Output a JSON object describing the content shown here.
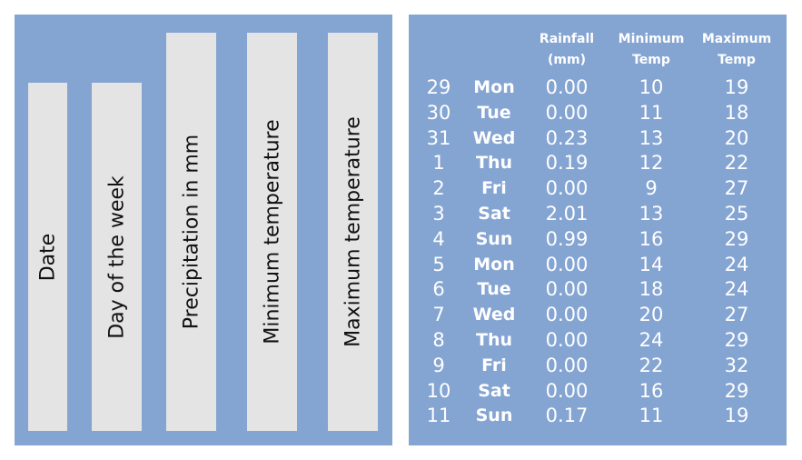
{
  "legend": {
    "bars": [
      {
        "label": "Date"
      },
      {
        "label": "Day of the week"
      },
      {
        "label": "Precipitation in mm"
      },
      {
        "label": "Minimum temperature"
      },
      {
        "label": "Maximum temperature"
      }
    ]
  },
  "table": {
    "headers": {
      "rainfall": "Rainfall\n(mm)",
      "min": "Minimum\nTemp",
      "max": "Maximum\nTemp"
    },
    "rows": [
      {
        "date": "29",
        "day": "Mon",
        "rain": "0.00",
        "min": "10",
        "max": "19"
      },
      {
        "date": "30",
        "day": "Tue",
        "rain": "0.00",
        "min": "11",
        "max": "18"
      },
      {
        "date": "31",
        "day": "Wed",
        "rain": "0.23",
        "min": "13",
        "max": "20"
      },
      {
        "date": "1",
        "day": "Thu",
        "rain": "0.19",
        "min": "12",
        "max": "22"
      },
      {
        "date": "2",
        "day": "Fri",
        "rain": "0.00",
        "min": "9",
        "max": "27"
      },
      {
        "date": "3",
        "day": "Sat",
        "rain": "2.01",
        "min": "13",
        "max": "25"
      },
      {
        "date": "4",
        "day": "Sun",
        "rain": "0.99",
        "min": "16",
        "max": "29"
      },
      {
        "date": "5",
        "day": "Mon",
        "rain": "0.00",
        "min": "14",
        "max": "24"
      },
      {
        "date": "6",
        "day": "Tue",
        "rain": "0.00",
        "min": "18",
        "max": "24"
      },
      {
        "date": "7",
        "day": "Wed",
        "rain": "0.00",
        "min": "20",
        "max": "27"
      },
      {
        "date": "8",
        "day": "Thu",
        "rain": "0.00",
        "min": "24",
        "max": "29"
      },
      {
        "date": "9",
        "day": "Fri",
        "rain": "0.00",
        "min": "22",
        "max": "32"
      },
      {
        "date": "10",
        "day": "Sat",
        "rain": "0.00",
        "min": "16",
        "max": "29"
      },
      {
        "date": "11",
        "day": "Sun",
        "rain": "0.17",
        "min": "11",
        "max": "19"
      }
    ]
  },
  "colors": {
    "panel": "#84A4D2",
    "bar": "#E4E4E4",
    "text_light": "#FFFFFF",
    "text_dark": "#111111"
  }
}
